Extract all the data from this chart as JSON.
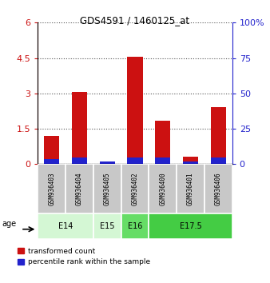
{
  "title": "GDS4591 / 1460125_at",
  "samples": [
    "GSM936403",
    "GSM936404",
    "GSM936405",
    "GSM936402",
    "GSM936400",
    "GSM936401",
    "GSM936406"
  ],
  "transformed_counts": [
    1.2,
    3.05,
    0.12,
    4.55,
    1.85,
    0.32,
    2.42
  ],
  "percentile_ranks_scaled": [
    0.2,
    0.29,
    0.12,
    0.29,
    0.28,
    0.1,
    0.28
  ],
  "age_groups": [
    {
      "label": "E14",
      "start": 0,
      "end": 1,
      "color": "#d4f7d4"
    },
    {
      "label": "E15",
      "start": 2,
      "end": 2,
      "color": "#d4f7d4"
    },
    {
      "label": "E16",
      "start": 3,
      "end": 3,
      "color": "#66dd66"
    },
    {
      "label": "E17.5",
      "start": 4,
      "end": 6,
      "color": "#44cc44"
    }
  ],
  "ylim_left": [
    0,
    6
  ],
  "ylim_right": [
    0,
    100
  ],
  "yticks_left": [
    0,
    1.5,
    3.0,
    4.5,
    6.0
  ],
  "yticks_left_labels": [
    "0",
    "1.5",
    "3",
    "4.5",
    "6"
  ],
  "yticks_right": [
    0,
    25,
    50,
    75,
    100
  ],
  "yticks_right_labels": [
    "0",
    "25",
    "50",
    "75",
    "100%"
  ],
  "bar_color_red": "#cc1111",
  "bar_color_blue": "#2222cc",
  "bg_color_samples": "#c8c8c8",
  "text_color_left": "#cc1111",
  "text_color_right": "#2222cc",
  "legend_red_label": "transformed count",
  "legend_blue_label": "percentile rank within the sample",
  "age_label": "age"
}
